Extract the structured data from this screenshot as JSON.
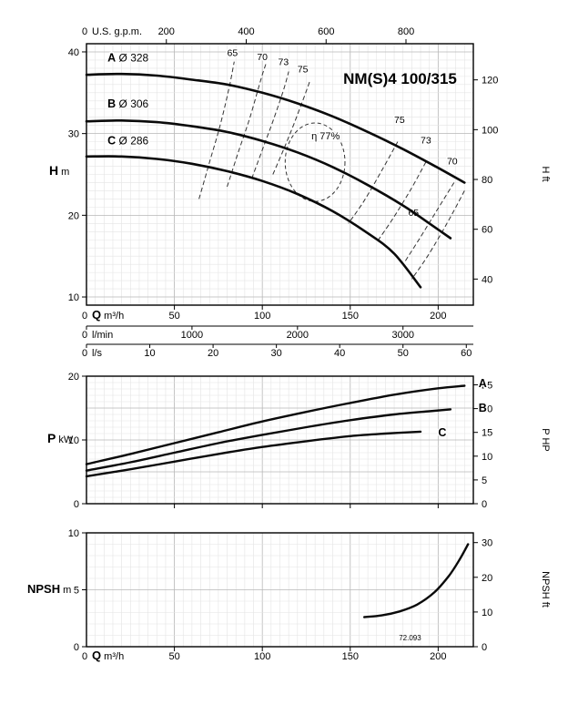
{
  "title": "NM(S)4 100/315",
  "colors": {
    "frame": "#000000",
    "grid_minor": "#e4e4e4",
    "grid_major": "#b7b7b7",
    "curve": "#0a0a0a",
    "efficiency": "#333333"
  },
  "chart_data": [
    {
      "id": "head",
      "type": "line",
      "title": "NM(S)4 100/315",
      "x_axis": {
        "label_bold": "Q",
        "label_unit": " m³/h",
        "zero_label": "0",
        "range": [
          0,
          220
        ],
        "ticks": [
          50,
          100,
          150,
          200
        ]
      },
      "x_axis_secondary": [
        {
          "name": "us_gpm",
          "label": "U.S. g.p.m.",
          "zero_label": "0",
          "ticks": [
            200,
            400,
            600,
            800
          ],
          "q_per_unit": 0.227125
        },
        {
          "name": "l_min",
          "label": "l/min",
          "zero_label": "0",
          "ticks": [
            1000,
            2000,
            3000
          ],
          "q_per_unit": 0.06
        },
        {
          "name": "l_s",
          "label": "l/s",
          "zero_label": "0",
          "ticks": [
            10,
            20,
            30,
            40,
            50,
            60
          ],
          "q_per_unit": 3.6
        }
      ],
      "y_axis": {
        "label_bold": "H",
        "label_unit": " m",
        "range": [
          9,
          41
        ],
        "ticks": [
          10,
          20,
          30,
          40
        ]
      },
      "y_axis_right": {
        "label": "H ft",
        "ticks": [
          40,
          60,
          80,
          100,
          120
        ],
        "m_per_unit": 0.3048
      },
      "series": [
        {
          "name": "A",
          "diameter_label": "Ø 328",
          "label_pos": [
            12,
            38.8
          ],
          "points": [
            [
              0,
              37.2
            ],
            [
              20,
              37.3
            ],
            [
              40,
              37.1
            ],
            [
              60,
              36.6
            ],
            [
              80,
              36.0
            ],
            [
              100,
              35.0
            ],
            [
              120,
              33.7
            ],
            [
              140,
              32.1
            ],
            [
              160,
              30.2
            ],
            [
              180,
              28.1
            ],
            [
              200,
              25.8
            ],
            [
              215,
              24.0
            ]
          ]
        },
        {
          "name": "B",
          "diameter_label": "Ø 306",
          "label_pos": [
            12,
            33.2
          ],
          "points": [
            [
              0,
              31.5
            ],
            [
              20,
              31.6
            ],
            [
              40,
              31.4
            ],
            [
              60,
              30.9
            ],
            [
              80,
              30.2
            ],
            [
              100,
              29.1
            ],
            [
              120,
              27.7
            ],
            [
              140,
              25.9
            ],
            [
              160,
              23.7
            ],
            [
              180,
              21.2
            ],
            [
              195,
              19.0
            ],
            [
              207,
              17.2
            ]
          ]
        },
        {
          "name": "C",
          "diameter_label": "Ø 286",
          "label_pos": [
            12,
            28.7
          ],
          "points": [
            [
              0,
              27.2
            ],
            [
              20,
              27.2
            ],
            [
              40,
              26.9
            ],
            [
              60,
              26.3
            ],
            [
              80,
              25.4
            ],
            [
              100,
              24.2
            ],
            [
              120,
              22.6
            ],
            [
              140,
              20.5
            ],
            [
              160,
              17.8
            ],
            [
              175,
              15.3
            ],
            [
              190,
              11.2
            ]
          ]
        }
      ],
      "efficiency_contours": [
        {
          "label": "65",
          "label_pos": [
            83,
            39.5
          ],
          "points": [
            [
              64,
              22
            ],
            [
              70,
              26.5
            ],
            [
              76,
              31
            ],
            [
              81,
              35.5
            ],
            [
              84,
              38.8
            ]
          ]
        },
        {
          "label": "70",
          "label_pos": [
            100,
            39.0
          ],
          "points": [
            [
              80,
              23.5
            ],
            [
              86,
              27.5
            ],
            [
              93,
              32
            ],
            [
              99,
              36.5
            ],
            [
              102,
              38.5
            ]
          ]
        },
        {
          "label": "73",
          "label_pos": [
            112,
            38.4
          ],
          "points": [
            [
              94,
              24.5
            ],
            [
              100,
              28
            ],
            [
              106,
              31.5
            ],
            [
              112,
              35.3
            ],
            [
              115,
              37.6
            ]
          ]
        },
        {
          "label": "75",
          "label_pos": [
            123,
            37.5
          ],
          "points": [
            [
              106,
              25
            ],
            [
              112,
              28
            ],
            [
              118,
              31.2
            ],
            [
              124,
              34.6
            ],
            [
              127,
              36.4
            ]
          ]
        },
        {
          "label": "75",
          "label_pos": [
            178,
            31.3
          ],
          "points": [
            [
              177,
              29
            ],
            [
              168,
              25.5
            ],
            [
              158,
              21.8
            ],
            [
              149,
              19.0
            ]
          ]
        },
        {
          "label": "73",
          "label_pos": [
            193,
            28.8
          ],
          "points": [
            [
              193,
              26.5
            ],
            [
              184,
              23
            ],
            [
              174,
              19.5
            ],
            [
              166,
              17.0
            ]
          ]
        },
        {
          "label": "70",
          "label_pos": [
            208,
            26.2
          ],
          "points": [
            [
              209,
              24
            ],
            [
              199,
              20.5
            ],
            [
              189,
              17
            ],
            [
              181,
              14.3
            ]
          ]
        },
        {
          "label": "65",
          "label_pos": [
            186,
            19.9
          ],
          "points": [
            [
              215,
              23
            ],
            [
              205,
              19
            ],
            [
              194,
              15
            ],
            [
              185,
              12.2
            ]
          ]
        }
      ],
      "efficiency_island": {
        "label": "η 77%",
        "label_pos": [
          136,
          29.3
        ],
        "center": [
          130,
          26.5
        ],
        "rx": 17,
        "ry": 4.8
      }
    },
    {
      "id": "power",
      "type": "line",
      "x_axis": {
        "range": [
          0,
          220
        ],
        "ticks": [
          50,
          100,
          150,
          200
        ]
      },
      "y_axis": {
        "label_bold": "P",
        "label_unit": " kW",
        "range": [
          0,
          20
        ],
        "ticks": [
          0,
          10,
          20
        ]
      },
      "y_axis_right": {
        "label": "P HP",
        "ticks": [
          0,
          5,
          10,
          15,
          20,
          25
        ],
        "kw_per_unit": 0.7457
      },
      "series": [
        {
          "name": "A",
          "label_pos": [
            223,
            18.3
          ],
          "points": [
            [
              0,
              6.2
            ],
            [
              25,
              7.8
            ],
            [
              50,
              9.5
            ],
            [
              75,
              11.2
            ],
            [
              100,
              12.9
            ],
            [
              125,
              14.4
            ],
            [
              150,
              15.8
            ],
            [
              175,
              17.1
            ],
            [
              200,
              18.1
            ],
            [
              215,
              18.5
            ]
          ]
        },
        {
          "name": "B",
          "label_pos": [
            223,
            14.4
          ],
          "points": [
            [
              0,
              5.2
            ],
            [
              25,
              6.5
            ],
            [
              50,
              8.0
            ],
            [
              75,
              9.5
            ],
            [
              100,
              10.8
            ],
            [
              125,
              12.0
            ],
            [
              150,
              13.1
            ],
            [
              175,
              14.0
            ],
            [
              195,
              14.5
            ],
            [
              207,
              14.8
            ]
          ]
        },
        {
          "name": "C",
          "label_pos": [
            200,
            10.6
          ],
          "points": [
            [
              0,
              4.3
            ],
            [
              25,
              5.4
            ],
            [
              50,
              6.6
            ],
            [
              75,
              7.8
            ],
            [
              100,
              8.9
            ],
            [
              125,
              9.8
            ],
            [
              150,
              10.6
            ],
            [
              170,
              11.0
            ],
            [
              190,
              11.3
            ]
          ]
        }
      ]
    },
    {
      "id": "npsh",
      "type": "line",
      "x_axis": {
        "label_bold": "Q",
        "label_unit": " m³/h",
        "zero_label": "0",
        "range": [
          0,
          220
        ],
        "ticks": [
          50,
          100,
          150,
          200
        ]
      },
      "y_axis": {
        "label_bold": "NPSH",
        "label_unit": " m",
        "range": [
          0,
          10
        ],
        "ticks": [
          0,
          5,
          10
        ]
      },
      "y_axis_right": {
        "label": "NPSH ft",
        "ticks": [
          0,
          10,
          20,
          30
        ],
        "m_per_unit": 0.3048
      },
      "series": [
        {
          "name": "NPSH",
          "points": [
            [
              158,
              2.6
            ],
            [
              168,
              2.75
            ],
            [
              178,
              3.1
            ],
            [
              188,
              3.7
            ],
            [
              198,
              4.8
            ],
            [
              206,
              6.2
            ],
            [
              212,
              7.6
            ],
            [
              217,
              9.0
            ]
          ]
        }
      ],
      "doc_number": {
        "text": "72.093",
        "pos": [
          184,
          0.55
        ]
      }
    }
  ]
}
